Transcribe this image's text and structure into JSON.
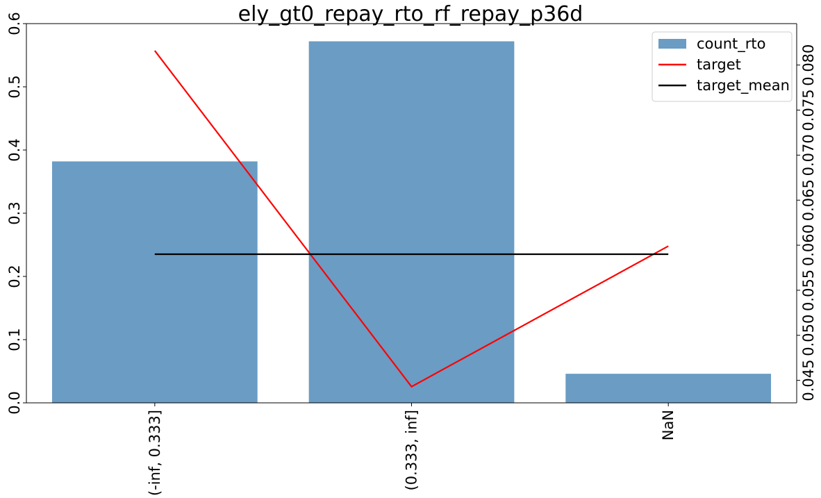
{
  "chart_data": {
    "type": "bar",
    "title": "ely_gt0_repay_rto_rf_repay_p36d",
    "categories": [
      "(-inf, 0.333]",
      "(0.333, inf]",
      "NaN"
    ],
    "series": [
      {
        "name": "count_rto",
        "type": "bar",
        "axis": "left",
        "color": "#6a9cc4",
        "values": [
          0.382,
          0.572,
          0.046
        ]
      },
      {
        "name": "target",
        "type": "line",
        "axis": "right",
        "color": "#ff0000",
        "values": [
          0.0816,
          0.0443,
          0.0599
        ]
      },
      {
        "name": "target_mean",
        "type": "line",
        "axis": "right",
        "color": "#000000",
        "values": [
          0.059,
          0.059,
          0.059
        ]
      }
    ],
    "y_left": {
      "ylim": [
        0,
        0.6
      ],
      "ticks": [
        0.0,
        0.1,
        0.2,
        0.3,
        0.4,
        0.5,
        0.6
      ],
      "tick_labels": [
        "0.0",
        "0.1",
        "0.2",
        "0.3",
        "0.4",
        "0.5",
        "0.6"
      ]
    },
    "y_right": {
      "ylim": [
        0.0425,
        0.0846
      ],
      "ticks": [
        0.045,
        0.05,
        0.055,
        0.06,
        0.065,
        0.07,
        0.075,
        0.08
      ],
      "tick_labels": [
        "0.045",
        "0.050",
        "0.055",
        "0.060",
        "0.065",
        "0.070",
        "0.075",
        "0.080"
      ]
    },
    "xlabel": "",
    "ylabel": "",
    "grid": false,
    "legend_position": "top-right"
  }
}
